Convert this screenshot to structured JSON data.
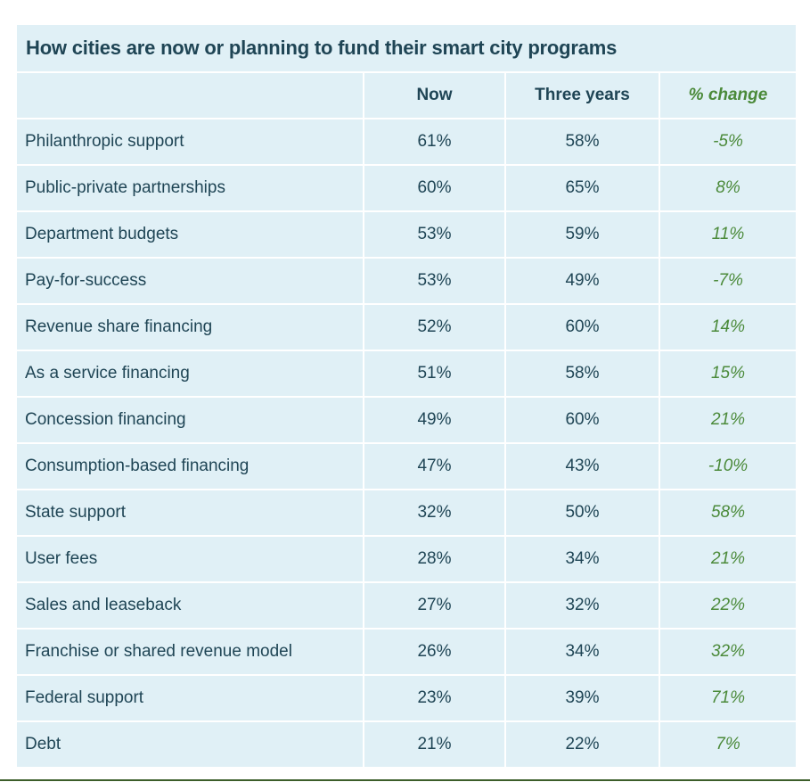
{
  "title": "How cities are now or planning to fund their smart city programs",
  "columns": [
    "",
    "Now",
    "Three years",
    "% change"
  ],
  "rows": [
    {
      "label": "Philanthropic support",
      "now": "61%",
      "three_years": "58%",
      "change": "-5%"
    },
    {
      "label": "Public-private partnerships",
      "now": "60%",
      "three_years": "65%",
      "change": "8%"
    },
    {
      "label": "Department budgets",
      "now": "53%",
      "three_years": "59%",
      "change": "11%"
    },
    {
      "label": "Pay-for-success",
      "now": "53%",
      "three_years": "49%",
      "change": "-7%"
    },
    {
      "label": "Revenue share financing",
      "now": "52%",
      "three_years": "60%",
      "change": "14%"
    },
    {
      "label": "As a service financing",
      "now": "51%",
      "three_years": "58%",
      "change": "15%"
    },
    {
      "label": "Concession financing",
      "now": "49%",
      "three_years": "60%",
      "change": "21%"
    },
    {
      "label": "Consumption-based financing",
      "now": "47%",
      "three_years": "43%",
      "change": "-10%"
    },
    {
      "label": "State support",
      "now": "32%",
      "three_years": "50%",
      "change": "58%"
    },
    {
      "label": "User fees",
      "now": "28%",
      "three_years": "34%",
      "change": "21%"
    },
    {
      "label": "Sales and leaseback",
      "now": "27%",
      "three_years": "32%",
      "change": "22%"
    },
    {
      "label": "Franchise or shared revenue model",
      "now": "26%",
      "three_years": "34%",
      "change": "32%"
    },
    {
      "label": "Federal support",
      "now": "23%",
      "three_years": "39%",
      "change": "71%"
    },
    {
      "label": "Debt",
      "now": "21%",
      "three_years": "22%",
      "change": "7%"
    }
  ],
  "colors": {
    "cell_bg": "#e0f0f6",
    "text": "#1f4555",
    "change_text": "#4b8a3a",
    "rule": "#3c5e2a"
  }
}
